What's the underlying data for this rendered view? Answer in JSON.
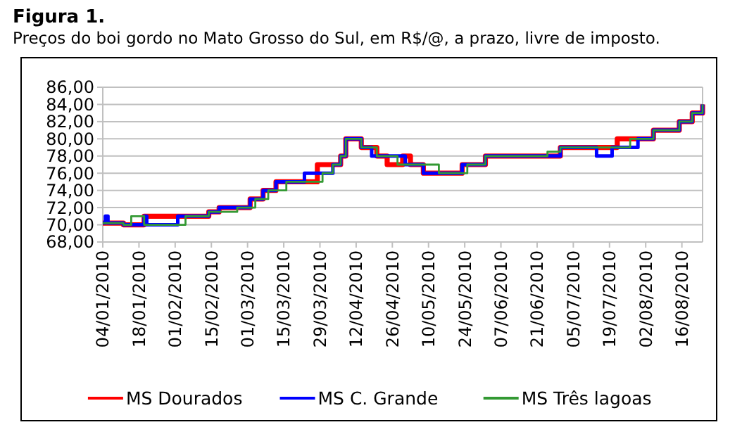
{
  "chart_data": {
    "type": "step",
    "title": "Figura 1.",
    "subtitle": "Preços do boi gordo no Mato Grosso do Sul, em R$/@, a prazo, livre de imposto.",
    "xlim": [
      "2010-01-04",
      "2010-08-24"
    ],
    "xticks": [
      {
        "value": "2010-01-04",
        "label": "04/01/2010"
      },
      {
        "value": "2010-01-18",
        "label": "18/01/2010"
      },
      {
        "value": "2010-02-01",
        "label": "01/02/2010"
      },
      {
        "value": "2010-02-15",
        "label": "15/02/2010"
      },
      {
        "value": "2010-03-01",
        "label": "01/03/2010"
      },
      {
        "value": "2010-03-15",
        "label": "15/03/2010"
      },
      {
        "value": "2010-03-29",
        "label": "29/03/2010"
      },
      {
        "value": "2010-04-12",
        "label": "12/04/2010"
      },
      {
        "value": "2010-04-26",
        "label": "26/04/2010"
      },
      {
        "value": "2010-05-10",
        "label": "10/05/2010"
      },
      {
        "value": "2010-05-24",
        "label": "24/05/2010"
      },
      {
        "value": "2010-06-07",
        "label": "07/06/2010"
      },
      {
        "value": "2010-06-21",
        "label": "21/06/2010"
      },
      {
        "value": "2010-07-05",
        "label": "05/07/2010"
      },
      {
        "value": "2010-07-19",
        "label": "19/07/2010"
      },
      {
        "value": "2010-08-02",
        "label": "02/08/2010"
      },
      {
        "value": "2010-08-16",
        "label": "16/08/2010"
      }
    ],
    "ylim": [
      68,
      86
    ],
    "yticks": [
      {
        "value": 68,
        "label": "68,00"
      },
      {
        "value": 70,
        "label": "70,00"
      },
      {
        "value": 72,
        "label": "72,00"
      },
      {
        "value": 74,
        "label": "74,00"
      },
      {
        "value": 76,
        "label": "76,00"
      },
      {
        "value": 78,
        "label": "78,00"
      },
      {
        "value": 80,
        "label": "80,00"
      },
      {
        "value": 82,
        "label": "82,00"
      },
      {
        "value": 84,
        "label": "84,00"
      },
      {
        "value": 86,
        "label": "86,00"
      }
    ],
    "grid": "y",
    "legend": "bottom",
    "marker": "none",
    "line_style": "solid",
    "series": [
      {
        "name": "MS Dourados",
        "color": "#ff0000",
        "x": [
          "2010-01-04",
          "2010-01-12",
          "2010-01-20",
          "2010-02-05",
          "2010-02-14",
          "2010-02-18",
          "2010-03-02",
          "2010-03-07",
          "2010-03-12",
          "2010-03-28",
          "2010-04-03",
          "2010-04-06",
          "2010-04-08",
          "2010-04-14",
          "2010-04-20",
          "2010-04-24",
          "2010-04-30",
          "2010-05-03",
          "2010-05-08",
          "2010-05-23",
          "2010-06-01",
          "2010-06-30",
          "2010-07-22",
          "2010-08-05",
          "2010-08-15",
          "2010-08-20",
          "2010-08-24"
        ],
        "values": [
          70.2,
          70,
          71,
          71,
          71.5,
          72,
          73,
          74,
          75,
          77,
          77,
          78,
          80,
          79,
          78,
          77,
          78,
          77,
          76,
          77,
          78,
          79,
          80,
          81,
          82,
          83,
          84
        ]
      },
      {
        "name": "MS C. Grande",
        "color": "#0000ff",
        "x": [
          "2010-01-04",
          "2010-01-05",
          "2010-01-06",
          "2010-01-12",
          "2010-01-20",
          "2010-01-21",
          "2010-02-02",
          "2010-02-14",
          "2010-02-18",
          "2010-03-02",
          "2010-03-07",
          "2010-03-12",
          "2010-03-23",
          "2010-04-03",
          "2010-04-06",
          "2010-04-08",
          "2010-04-14",
          "2010-04-18",
          "2010-05-01",
          "2010-05-08",
          "2010-05-23",
          "2010-06-01",
          "2010-06-30",
          "2010-07-14",
          "2010-07-20",
          "2010-07-30",
          "2010-08-05",
          "2010-08-15",
          "2010-08-20",
          "2010-08-24"
        ],
        "values": [
          70.2,
          71,
          70.2,
          70,
          71,
          70,
          71,
          71.5,
          72,
          73,
          74,
          75,
          76,
          77,
          78,
          80,
          79,
          78,
          77,
          76,
          77,
          78,
          79,
          78,
          79,
          80,
          81,
          82,
          83,
          84
        ]
      },
      {
        "name": "MS Três lagoas",
        "color": "#339933",
        "x": [
          "2010-01-04",
          "2010-01-12",
          "2010-01-15",
          "2010-01-20",
          "2010-02-05",
          "2010-02-14",
          "2010-02-25",
          "2010-03-04",
          "2010-03-09",
          "2010-03-16",
          "2010-03-30",
          "2010-04-03",
          "2010-04-06",
          "2010-04-08",
          "2010-04-14",
          "2010-04-20",
          "2010-04-28",
          "2010-05-14",
          "2010-05-25",
          "2010-06-01",
          "2010-06-25",
          "2010-06-30",
          "2010-07-27",
          "2010-08-05",
          "2010-08-15",
          "2010-08-20",
          "2010-08-24"
        ],
        "values": [
          70.2,
          70,
          71,
          70,
          71,
          71.5,
          72,
          73,
          74,
          75,
          76,
          77,
          78,
          80,
          79,
          78,
          77,
          76,
          77,
          78,
          78.5,
          79,
          80,
          81,
          82,
          83,
          84
        ]
      }
    ]
  }
}
